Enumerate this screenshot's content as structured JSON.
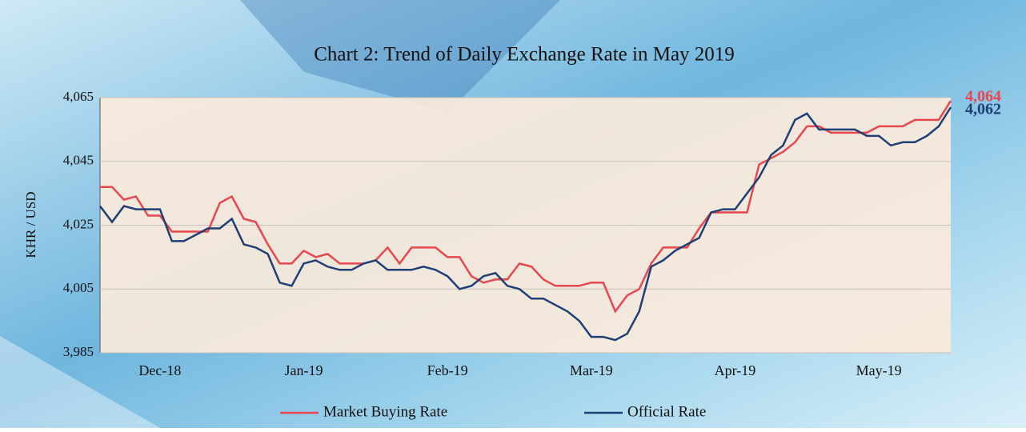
{
  "chart_data": {
    "type": "line",
    "title": "Chart 2: Trend of Daily Exchange Rate in May 2019",
    "y_label": "KHR / USD",
    "categories": [
      null,
      null,
      null,
      null,
      null,
      "Dec-18",
      null,
      null,
      null,
      null,
      null,
      null,
      null,
      null,
      null,
      null,
      null,
      "Jan-19",
      null,
      null,
      null,
      null,
      null,
      null,
      null,
      null,
      null,
      null,
      null,
      "Feb-19",
      null,
      null,
      null,
      null,
      null,
      null,
      null,
      null,
      null,
      null,
      null,
      "Mar-19",
      null,
      null,
      null,
      null,
      null,
      null,
      null,
      null,
      null,
      null,
      null,
      "Apr-19",
      null,
      null,
      null,
      null,
      null,
      null,
      null,
      null,
      null,
      null,
      null,
      "May-19",
      null,
      null,
      null,
      null,
      null,
      null
    ],
    "series": [
      {
        "name": "Market Buying Rate",
        "color": "#e8474f",
        "values": [
          4037,
          4037,
          4033,
          4034,
          4028,
          4028,
          4023,
          4023,
          4023,
          4023,
          4032,
          4034,
          4027,
          4026,
          4019,
          4013,
          4013,
          4017,
          4015,
          4016,
          4013,
          4013,
          4013,
          4014,
          4018,
          4013,
          4018,
          4018,
          4018,
          4015,
          4015,
          4009,
          4007,
          4008,
          4008,
          4013,
          4012,
          4008,
          4006,
          4006,
          4006,
          4007,
          4007,
          3998,
          4003,
          4005,
          4013,
          4018,
          4018,
          4018,
          4024,
          4029,
          4029,
          4029,
          4029,
          4044,
          4046,
          4048,
          4051,
          4056,
          4056,
          4054,
          4054,
          4054,
          4054,
          4056,
          4056,
          4056,
          4058,
          4058,
          4058,
          4064
        ],
        "value_labels": [
          null,
          null,
          null,
          null,
          null,
          null,
          null,
          null,
          null,
          null,
          null,
          null,
          null,
          null,
          null,
          null,
          null,
          null,
          null,
          null,
          null,
          null,
          null,
          null,
          null,
          null,
          null,
          null,
          null,
          null,
          null,
          null,
          null,
          null,
          null,
          null,
          null,
          null,
          null,
          null,
          null,
          null,
          null,
          null,
          null,
          null,
          null,
          null,
          null,
          null,
          null,
          null,
          null,
          null,
          null,
          null,
          null,
          null,
          null,
          null,
          null,
          null,
          null,
          null,
          null,
          null,
          null,
          null,
          null,
          null,
          null,
          "4,064"
        ]
      },
      {
        "name": "Official Rate",
        "color": "#1f3f75",
        "values": [
          4031,
          4026,
          4031,
          4030,
          4030,
          4030,
          4020,
          4020,
          4022,
          4024,
          4024,
          4027,
          4019,
          4018,
          4016,
          4007,
          4006,
          4013,
          4014,
          4012,
          4011,
          4011,
          4013,
          4014,
          4011,
          4011,
          4011,
          4012,
          4011,
          4009,
          4005,
          4006,
          4009,
          4010,
          4006,
          4005,
          4002,
          4002,
          4000,
          3998,
          3995,
          3990,
          3990,
          3989,
          3991,
          3998,
          4012,
          4014,
          4017,
          4019,
          4021,
          4029,
          4030,
          4030,
          4035,
          4040,
          4047,
          4050,
          4058,
          4060,
          4055,
          4055,
          4055,
          4055,
          4053,
          4053,
          4050,
          4051,
          4051,
          4053,
          4056,
          4062
        ],
        "value_labels": [
          null,
          null,
          null,
          null,
          null,
          null,
          null,
          null,
          null,
          null,
          null,
          null,
          null,
          null,
          null,
          null,
          null,
          null,
          null,
          null,
          null,
          null,
          null,
          null,
          null,
          null,
          null,
          null,
          null,
          null,
          null,
          null,
          null,
          null,
          null,
          null,
          null,
          null,
          null,
          null,
          null,
          null,
          null,
          null,
          null,
          null,
          null,
          null,
          null,
          null,
          null,
          null,
          null,
          null,
          null,
          null,
          null,
          null,
          null,
          null,
          null,
          null,
          null,
          null,
          null,
          null,
          null,
          null,
          null,
          null,
          null,
          "4,062"
        ]
      }
    ],
    "ylim": [
      3985,
      4065
    ],
    "yticks": [
      {
        "value": 3985,
        "label": "3,985"
      },
      {
        "value": 4005,
        "label": "4,005"
      },
      {
        "value": 4025,
        "label": "4,025"
      },
      {
        "value": 4045,
        "label": "4,045"
      },
      {
        "value": 4065,
        "label": "4,065"
      }
    ],
    "grid": true
  }
}
